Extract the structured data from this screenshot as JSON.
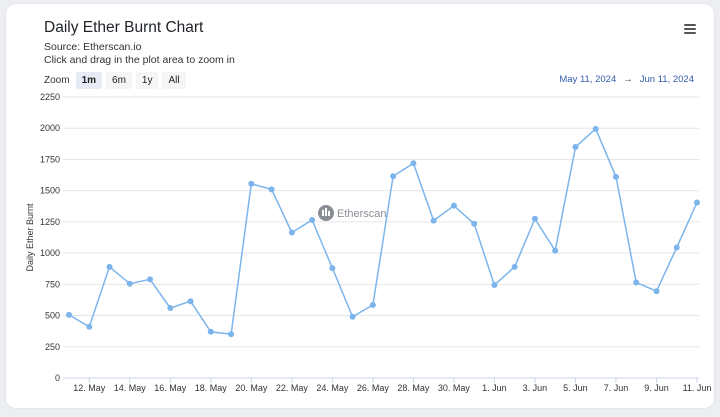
{
  "header": {
    "title": "Daily Ether Burnt Chart",
    "source": "Source: Etherscan.io",
    "hint": "Click and drag in the plot area to zoom in"
  },
  "zoom": {
    "label": "Zoom",
    "options": [
      "1m",
      "6m",
      "1y",
      "All"
    ],
    "active": "1m"
  },
  "range": {
    "from": "May 11, 2024",
    "arrow": "→",
    "to": "Jun 11, 2024"
  },
  "watermark": "Etherscan",
  "colors": {
    "line": "#7cb5ec",
    "marker": "#7cb5ec",
    "grid": "#e6e6e6"
  },
  "chart_data": {
    "type": "line",
    "ylabel": "Daily Ether Burnt",
    "ylim": [
      0,
      2250
    ],
    "yticks": [
      0,
      250,
      500,
      750,
      1000,
      1250,
      1500,
      1750,
      2000,
      2250
    ],
    "xticks": [
      "12. May",
      "14. May",
      "16. May",
      "18. May",
      "20. May",
      "22. May",
      "24. May",
      "26. May",
      "28. May",
      "30. May",
      "1. Jun",
      "3. Jun",
      "5. Jun",
      "7. Jun",
      "9. Jun",
      "11. Jun"
    ],
    "x": [
      "11. May",
      "12. May",
      "13. May",
      "14. May",
      "15. May",
      "16. May",
      "17. May",
      "18. May",
      "19. May",
      "20. May",
      "21. May",
      "22. May",
      "23. May",
      "24. May",
      "25. May",
      "26. May",
      "27. May",
      "28. May",
      "29. May",
      "30. May",
      "31. May",
      "1. Jun",
      "2. Jun",
      "3. Jun",
      "4. Jun",
      "5. Jun",
      "6. Jun",
      "7. Jun",
      "8. Jun",
      "9. Jun",
      "10. Jun",
      "11. Jun"
    ],
    "series": [
      {
        "values": [
          505,
          410,
          890,
          755,
          790,
          560,
          615,
          370,
          350,
          1555,
          1510,
          1165,
          1265,
          880,
          490,
          585,
          1615,
          1720,
          1260,
          1380,
          1235,
          745,
          890,
          1275,
          1020,
          1850,
          1995,
          1610,
          765,
          695,
          1045,
          1405
        ]
      }
    ],
    "grid": true,
    "legend": "none"
  }
}
